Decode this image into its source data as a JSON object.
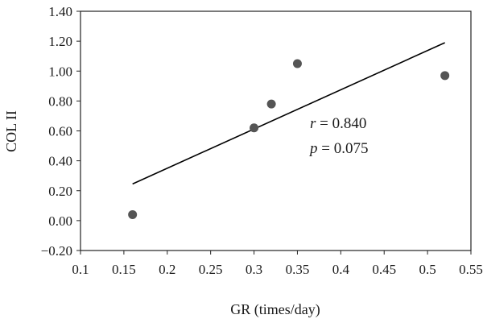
{
  "chart_data": {
    "type": "scatter",
    "xlabel": "GR (times/day)",
    "ylabel": "COL II",
    "xlim": [
      0.1,
      0.55
    ],
    "ylim": [
      -0.2,
      1.4
    ],
    "x_ticks": [
      "0.1",
      "0.15",
      "0.2",
      "0.25",
      "0.3",
      "0.35",
      "0.4",
      "0.45",
      "0.5",
      "0.55"
    ],
    "y_ticks": [
      "1.40",
      "1.20",
      "1.00",
      "0.80",
      "0.60",
      "0.40",
      "0.20",
      "0.00",
      "−0.20"
    ],
    "grid": false,
    "series": [
      {
        "points": [
          {
            "x": 0.16,
            "y": 0.04
          },
          {
            "x": 0.3,
            "y": 0.62
          },
          {
            "x": 0.32,
            "y": 0.78
          },
          {
            "x": 0.35,
            "y": 1.05
          },
          {
            "x": 0.52,
            "y": 0.97
          }
        ],
        "color": "#555555"
      }
    ],
    "trendline": {
      "x": [
        0.16,
        0.52
      ],
      "y": [
        0.245,
        1.19
      ],
      "color": "#000000"
    },
    "annotations": {
      "r_symbol": "r",
      "r_value": " = 0.840",
      "p_symbol": "p",
      "p_value": " = 0.075"
    }
  }
}
